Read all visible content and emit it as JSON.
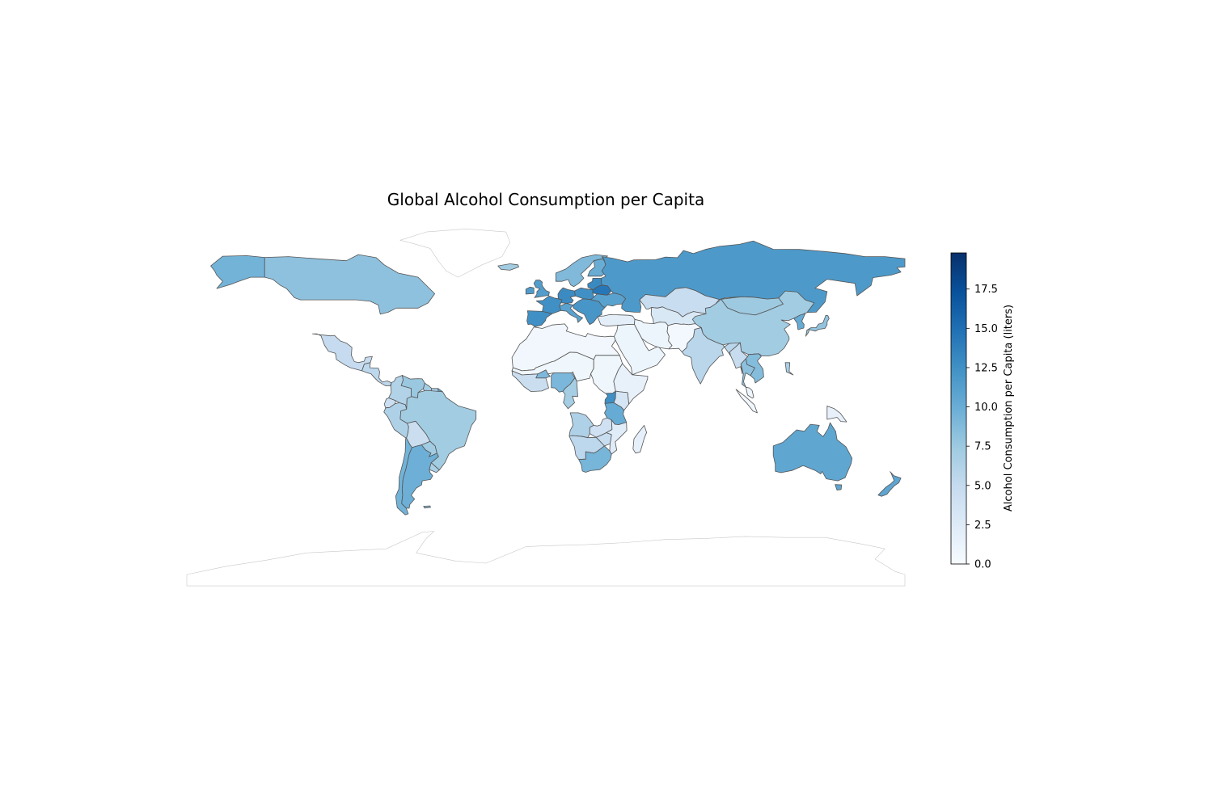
{
  "title": "Global Alcohol Consumption per Capita",
  "colorbar": {
    "label": "Alcohol Consumption per Capita (liters)",
    "min": 0.0,
    "max": 19.8,
    "ticks": [
      "0.0",
      "2.5",
      "5.0",
      "7.5",
      "10.0",
      "12.5",
      "15.0",
      "17.5"
    ],
    "colormap": "Blues",
    "color_stops": [
      "#f7fbff",
      "#deebf7",
      "#c6dbef",
      "#9ecae1",
      "#6baed6",
      "#4292c6",
      "#2171b5",
      "#08519c",
      "#08306b"
    ]
  },
  "chart_data": {
    "type": "choropleth",
    "title": "Global Alcohol Consumption per Capita",
    "value_label": "Alcohol Consumption per Capita (liters)",
    "scale": [
      0.0,
      19.8
    ],
    "no_data_color": "#ffffff",
    "regions": [
      {
        "name": "Canada",
        "value": 8.2
      },
      {
        "name": "Alaska",
        "value": 9.5
      },
      {
        "name": "Greenland",
        "value": null
      },
      {
        "name": "Mexico",
        "value": 4.9
      },
      {
        "name": "Central America",
        "value": 5.5
      },
      {
        "name": "Colombia",
        "value": 6.2
      },
      {
        "name": "Venezuela",
        "value": 7.6
      },
      {
        "name": "Guyana",
        "value": 7.0
      },
      {
        "name": "Suriname",
        "value": 6.5
      },
      {
        "name": "French Guiana",
        "value": 11.0
      },
      {
        "name": "Ecuador",
        "value": 4.4
      },
      {
        "name": "Peru",
        "value": 6.4
      },
      {
        "name": "Brazil",
        "value": 7.2
      },
      {
        "name": "Bolivia",
        "value": 4.5
      },
      {
        "name": "Paraguay",
        "value": 7.2
      },
      {
        "name": "Chile",
        "value": 9.5
      },
      {
        "name": "Argentina",
        "value": 9.8
      },
      {
        "name": "Uruguay",
        "value": 6.6
      },
      {
        "name": "Falkland Islands",
        "value": 8.0
      },
      {
        "name": "Iceland",
        "value": 7.2
      },
      {
        "name": "Scandinavia",
        "value": 8.9
      },
      {
        "name": "Finland",
        "value": 10.0
      },
      {
        "name": "Ireland",
        "value": 11.5
      },
      {
        "name": "United Kingdom",
        "value": 11.4
      },
      {
        "name": "Spain",
        "value": 12.5
      },
      {
        "name": "France",
        "value": 12.5
      },
      {
        "name": "Germany",
        "value": 12.9
      },
      {
        "name": "Poland",
        "value": 12.5
      },
      {
        "name": "Italy",
        "value": 11.0
      },
      {
        "name": "Balkans",
        "value": 12.0
      },
      {
        "name": "Ukraine",
        "value": 11.0
      },
      {
        "name": "Belarus",
        "value": 14.4
      },
      {
        "name": "Baltic states",
        "value": 13.0
      },
      {
        "name": "Turkey",
        "value": 2.0
      },
      {
        "name": "Russia",
        "value": 11.7
      },
      {
        "name": "Kazakhstan",
        "value": 4.6
      },
      {
        "name": "Central Asia",
        "value": 3.0
      },
      {
        "name": "Mongolia",
        "value": 7.4
      },
      {
        "name": "China",
        "value": 7.2
      },
      {
        "name": "Korea",
        "value": 10.2
      },
      {
        "name": "Japan",
        "value": 8.0
      },
      {
        "name": "India",
        "value": 5.7
      },
      {
        "name": "Middle East",
        "value": 1.0
      },
      {
        "name": "Iran",
        "value": 1.0
      },
      {
        "name": "Afghanistan & Pakistan",
        "value": 0.4
      },
      {
        "name": "Myanmar",
        "value": 4.8
      },
      {
        "name": "Thailand",
        "value": 8.3
      },
      {
        "name": "Vietnam, Laos & Cambodia",
        "value": 8.7
      },
      {
        "name": "Malaysia",
        "value": 0.9
      },
      {
        "name": "Indonesia",
        "value": 0.6
      },
      {
        "name": "Philippines",
        "value": 6.6
      },
      {
        "name": "Papua New Guinea",
        "value": 1.5
      },
      {
        "name": "Australia",
        "value": 10.6
      },
      {
        "name": "Tasmania",
        "value": 10.6
      },
      {
        "name": "New Zealand",
        "value": 10.7
      },
      {
        "name": "North Africa",
        "value": 0.6
      },
      {
        "name": "Sahel",
        "value": 0.8
      },
      {
        "name": "West Africa",
        "value": 4.5
      },
      {
        "name": "Burkina Faso",
        "value": 9.0
      },
      {
        "name": "Nigeria",
        "value": 9.1
      },
      {
        "name": "Cameroon & Gabon",
        "value": 7.0
      },
      {
        "name": "Sudan & South Sudan",
        "value": 0.8
      },
      {
        "name": "Horn of Africa",
        "value": 1.5
      },
      {
        "name": "Kenya",
        "value": 3.4
      },
      {
        "name": "Uganda",
        "value": 12.5
      },
      {
        "name": "Tanzania",
        "value": 10.2
      },
      {
        "name": "Angola",
        "value": 6.4
      },
      {
        "name": "Zambia",
        "value": 4.0
      },
      {
        "name": "Mozambique",
        "value": 2.3
      },
      {
        "name": "Botswana & Namibia",
        "value": 5.5
      },
      {
        "name": "Zimbabwe",
        "value": 4.7
      },
      {
        "name": "South Africa",
        "value": 9.3
      },
      {
        "name": "Madagascar",
        "value": 1.7
      },
      {
        "name": "Antarctica",
        "value": null
      }
    ]
  }
}
